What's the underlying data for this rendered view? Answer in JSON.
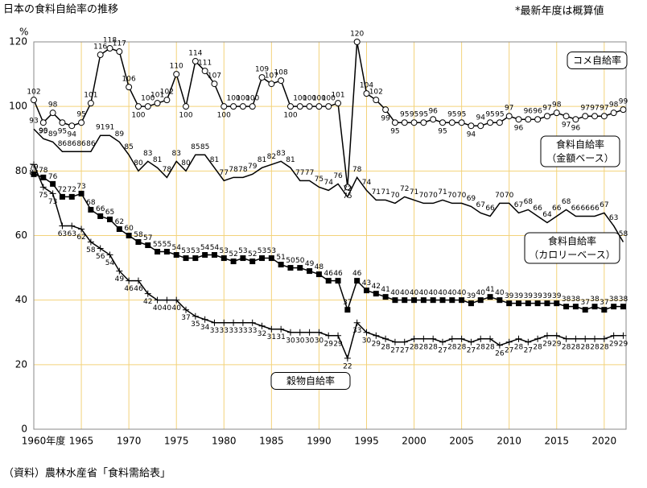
{
  "chart_data": {
    "type": "line",
    "title": "日本の食料自給率の推移",
    "note": "*最新年度は概算値",
    "source": "（資料）農林水産省「食料需給表」",
    "y_unit": "%",
    "x": [
      1960,
      1961,
      1962,
      1963,
      1964,
      1965,
      1966,
      1967,
      1968,
      1969,
      1970,
      1971,
      1972,
      1973,
      1974,
      1975,
      1976,
      1977,
      1978,
      1979,
      1980,
      1981,
      1982,
      1983,
      1984,
      1985,
      1986,
      1987,
      1988,
      1989,
      1990,
      1991,
      1992,
      1993,
      1994,
      1995,
      1996,
      1997,
      1998,
      1999,
      2000,
      2001,
      2002,
      2003,
      2004,
      2005,
      2006,
      2007,
      2008,
      2009,
      2010,
      2011,
      2012,
      2013,
      2014,
      2015,
      2016,
      2017,
      2018,
      2019,
      2020,
      2021,
      2022
    ],
    "xlim": [
      1960,
      2022.3
    ],
    "xticks": [
      {
        "value": 1960,
        "label": "1960年度"
      },
      1965,
      1970,
      1975,
      1980,
      1985,
      1990,
      1995,
      2000,
      2005,
      2010,
      2015,
      2020
    ],
    "ylim": [
      0,
      120
    ],
    "yticks": [
      0,
      20,
      40,
      60,
      80,
      100,
      120
    ],
    "grid": true,
    "series": [
      {
        "name": [
          "コメ自給率"
        ],
        "color": "#000000",
        "marker": "circle",
        "values": [
          102,
          95,
          98,
          95,
          94,
          95,
          101,
          116,
          118,
          117,
          106,
          100,
          100,
          101,
          102,
          110,
          100,
          114,
          111,
          107,
          100,
          100,
          100,
          100,
          109,
          107,
          108,
          100,
          100,
          100,
          100,
          100,
          101,
          75,
          120,
          104,
          102,
          99,
          95,
          95,
          95,
          95,
          96,
          95,
          95,
          95,
          94,
          94,
          95,
          95,
          97,
          96,
          96,
          96,
          97,
          98,
          97,
          96,
          97,
          97,
          97,
          98,
          99
        ]
      },
      {
        "name": [
          "食料自給率",
          "（金額ベース）"
        ],
        "color": "#000000",
        "marker": "none",
        "values": [
          93,
          90,
          89,
          86,
          86,
          86,
          86,
          91,
          91,
          89,
          85,
          80,
          83,
          81,
          78,
          83,
          80,
          85,
          85,
          81,
          77,
          78,
          78,
          79,
          81,
          82,
          83,
          81,
          77,
          77,
          75,
          74,
          76,
          72,
          78,
          74,
          71,
          71,
          70,
          72,
          71,
          70,
          70,
          71,
          70,
          70,
          69,
          67,
          66,
          70,
          70,
          67,
          68,
          66,
          64,
          66,
          68,
          66,
          66,
          66,
          67,
          63,
          58
        ]
      },
      {
        "name": [
          "食料自給率",
          "（カロリーベース）"
        ],
        "color": "#000000",
        "marker": "square",
        "values": [
          79,
          78,
          76,
          72,
          72,
          73,
          68,
          66,
          65,
          62,
          60,
          58,
          57,
          55,
          55,
          54,
          53,
          53,
          54,
          54,
          53,
          52,
          53,
          52,
          53,
          53,
          51,
          50,
          50,
          49,
          48,
          46,
          46,
          37,
          46,
          43,
          42,
          41,
          40,
          40,
          40,
          40,
          40,
          40,
          40,
          40,
          39,
          40,
          41,
          40,
          39,
          39,
          39,
          39,
          39,
          39,
          38,
          38,
          37,
          38,
          37,
          38,
          38
        ]
      },
      {
        "name": [
          "穀物自給率"
        ],
        "color": "#000000",
        "marker": "cross",
        "values": [
          82,
          75,
          73,
          63,
          63,
          62,
          58,
          56,
          54,
          49,
          46,
          46,
          42,
          40,
          40,
          40,
          37,
          35,
          34,
          33,
          33,
          33,
          33,
          33,
          32,
          31,
          31,
          30,
          30,
          30,
          30,
          29,
          29,
          22,
          33,
          30,
          29,
          28,
          27,
          27,
          28,
          28,
          28,
          27,
          28,
          28,
          27,
          28,
          28,
          26,
          27,
          28,
          27,
          28,
          29,
          29,
          28,
          28,
          28,
          28,
          28,
          29,
          29
        ]
      }
    ]
  }
}
